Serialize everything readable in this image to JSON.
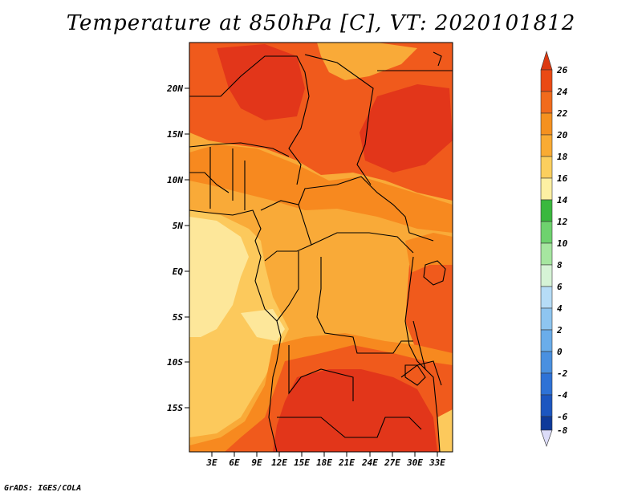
{
  "title": "Temperature at 850hPa [C], VT: 2020101812",
  "footer": "GrADS: IGES/COLA",
  "lat_ticks": [
    "20N",
    "15N",
    "10N",
    "5N",
    "EQ",
    "5S",
    "10S",
    "15S"
  ],
  "lon_ticks": [
    "3E",
    "6E",
    "9E",
    "12E",
    "15E",
    "18E",
    "21E",
    "24E",
    "27E",
    "30E",
    "33E"
  ],
  "colorbar": {
    "labels": [
      "26",
      "24",
      "22",
      "20",
      "18",
      "16",
      "14",
      "12",
      "10",
      "8",
      "6",
      "4",
      "2",
      "0",
      "-2",
      "-4",
      "-6",
      "-8"
    ],
    "colors": {
      "above_26": "#dc3a12",
      "24_26": "#ea4a14",
      "22_24": "#f16b1c",
      "20_22": "#f5911f",
      "18_20": "#f9ab33",
      "16_18": "#fbcf5e",
      "14_16": "#fdf0a3",
      "12_14": "#3ab83e",
      "10_12": "#6ed26e",
      "8_10": "#a6e6a0",
      "6_8": "#d6f3d6",
      "4_6": "#b6dcf6",
      "2_4": "#8ec5f0",
      "0_2": "#6aadea",
      "-2_0": "#4a90e0",
      "-4_-2": "#2e72d6",
      "-6_-4": "#1c56c0",
      "-8_-6": "#0e3a9a",
      "below_-8": "#dcdcf8"
    }
  },
  "map": {
    "domain_lon": [
      0,
      35
    ],
    "domain_lat": [
      -20,
      25
    ],
    "field_colors": {
      "hot": "#e2361a",
      "very_warm": "#f05a1c",
      "warm": "#f7891f",
      "mild": "#f9aa38",
      "cool": "#fcc95c",
      "coolest": "#fde79a"
    }
  }
}
